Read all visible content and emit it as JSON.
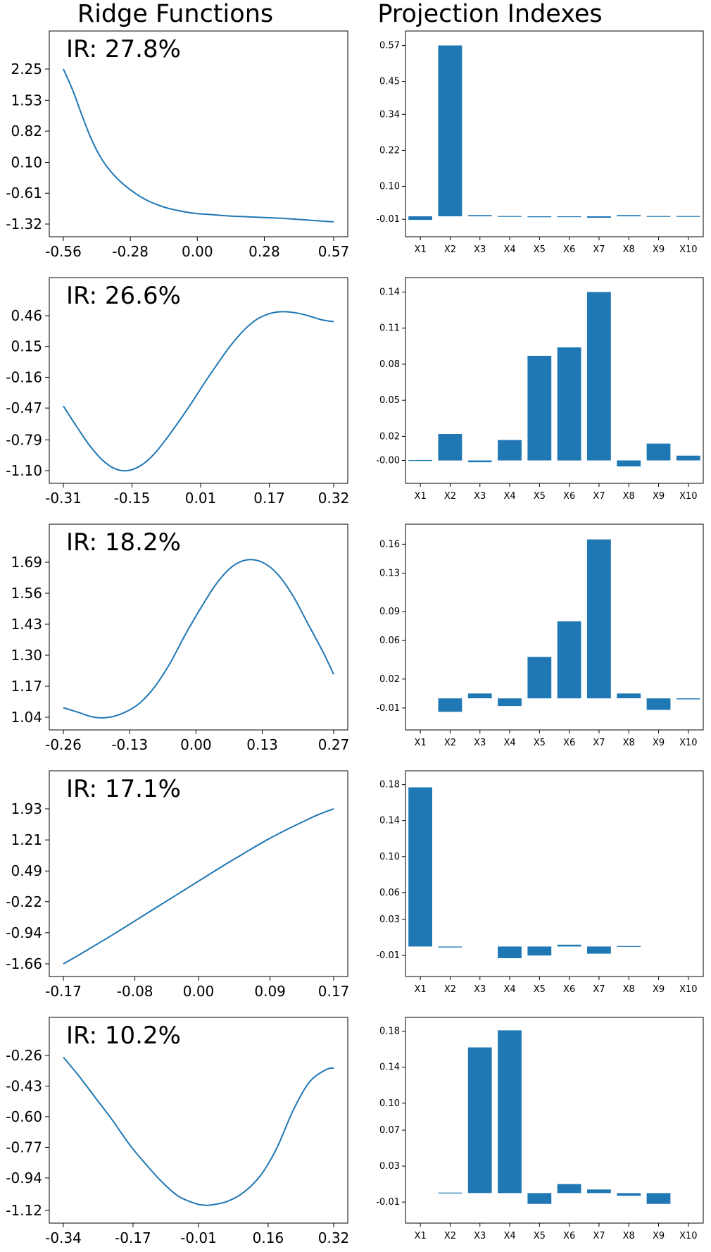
{
  "titles": {
    "ridge": "Ridge Functions",
    "projection": "Projection Indexes"
  },
  "colors": {
    "series": "#1f77b4"
  },
  "chart_data": [
    {
      "type": "line",
      "panel": "ridge",
      "annotation": "IR: 27.8%",
      "xlim": [
        -0.56,
        0.57
      ],
      "ylim": [
        -1.32,
        2.25
      ],
      "xticks": [
        "-0.56",
        "-0.28",
        "0.00",
        "0.28",
        "0.57"
      ],
      "yticks": [
        "2.25",
        "1.53",
        "0.82",
        "0.10",
        "-0.61",
        "-1.32"
      ],
      "x": [
        -0.56,
        -0.52,
        -0.48,
        -0.44,
        -0.4,
        -0.36,
        -0.32,
        -0.28,
        -0.24,
        -0.2,
        -0.16,
        -0.12,
        -0.08,
        -0.04,
        0.0,
        0.05,
        0.1,
        0.15,
        0.2,
        0.28,
        0.36,
        0.44,
        0.52,
        0.57
      ],
      "y": [
        2.25,
        1.75,
        1.15,
        0.6,
        0.18,
        -0.12,
        -0.35,
        -0.53,
        -0.68,
        -0.8,
        -0.89,
        -0.96,
        -1.01,
        -1.05,
        -1.08,
        -1.1,
        -1.12,
        -1.14,
        -1.15,
        -1.17,
        -1.19,
        -1.22,
        -1.25,
        -1.27
      ]
    },
    {
      "type": "bar",
      "panel": "projection",
      "categories": [
        "X1",
        "X2",
        "X3",
        "X4",
        "X5",
        "X6",
        "X7",
        "X8",
        "X9",
        "X10"
      ],
      "values": [
        -0.012,
        0.57,
        0.004,
        0.001,
        -0.003,
        -0.001,
        -0.005,
        0.004,
        0.001,
        0.001
      ],
      "ylim": [
        -0.04,
        0.59
      ],
      "yticks": [
        0.57,
        0.45,
        0.34,
        0.22,
        0.1,
        -0.01
      ],
      "ytick_labels": [
        "0.57",
        "0.45",
        "0.34",
        "0.22",
        "0.10",
        "-0.01"
      ]
    },
    {
      "type": "line",
      "panel": "ridge",
      "annotation": "IR: 26.6%",
      "xlim": [
        -0.31,
        0.32
      ],
      "ylim": [
        -1.1,
        0.46
      ],
      "xticks": [
        "-0.31",
        "-0.15",
        "0.01",
        "0.17",
        "0.32"
      ],
      "yticks": [
        "0.46",
        "0.15",
        "-0.16",
        "-0.47",
        "-0.79",
        "-1.10"
      ],
      "x": [
        -0.31,
        -0.28,
        -0.25,
        -0.22,
        -0.19,
        -0.16,
        -0.13,
        -0.1,
        -0.07,
        -0.04,
        -0.01,
        0.02,
        0.05,
        0.08,
        0.11,
        0.14,
        0.17,
        0.2,
        0.23,
        0.26,
        0.29,
        0.32
      ],
      "y": [
        -0.45,
        -0.65,
        -0.84,
        -0.99,
        -1.08,
        -1.1,
        -1.05,
        -0.94,
        -0.78,
        -0.6,
        -0.41,
        -0.21,
        -0.02,
        0.16,
        0.31,
        0.42,
        0.48,
        0.5,
        0.49,
        0.46,
        0.42,
        0.4
      ]
    },
    {
      "type": "bar",
      "panel": "projection",
      "categories": [
        "X1",
        "X2",
        "X3",
        "X4",
        "X5",
        "X6",
        "X7",
        "X8",
        "X9",
        "X10"
      ],
      "values": [
        0.0003,
        0.022,
        -0.0015,
        0.017,
        0.087,
        0.094,
        0.14,
        -0.005,
        0.014,
        0.004
      ],
      "ylim": [
        -0.012,
        0.145
      ],
      "yticks": [
        0.14,
        0.11,
        0.08,
        0.05,
        0.02,
        0.0
      ],
      "ytick_labels": [
        "0.14",
        "0.11",
        "0.08",
        "0.05",
        "0.02",
        "-0.00"
      ]
    },
    {
      "type": "line",
      "panel": "ridge",
      "annotation": "IR: 18.2%",
      "xlim": [
        -0.26,
        0.27
      ],
      "ylim": [
        1.04,
        1.69
      ],
      "xticks": [
        "-0.26",
        "-0.13",
        "0.00",
        "0.13",
        "0.27"
      ],
      "yticks": [
        "1.69",
        "1.56",
        "1.43",
        "1.30",
        "1.17",
        "1.04"
      ],
      "x": [
        -0.26,
        -0.23,
        -0.2,
        -0.17,
        -0.14,
        -0.11,
        -0.08,
        -0.05,
        -0.02,
        0.01,
        0.04,
        0.07,
        0.1,
        0.13,
        0.16,
        0.19,
        0.22,
        0.25,
        0.27
      ],
      "y": [
        1.08,
        1.06,
        1.04,
        1.04,
        1.06,
        1.1,
        1.17,
        1.27,
        1.39,
        1.5,
        1.6,
        1.67,
        1.7,
        1.69,
        1.64,
        1.55,
        1.43,
        1.31,
        1.22
      ]
    },
    {
      "type": "bar",
      "panel": "projection",
      "categories": [
        "X1",
        "X2",
        "X3",
        "X4",
        "X5",
        "X6",
        "X7",
        "X8",
        "X9",
        "X10"
      ],
      "values": [
        0,
        -0.014,
        0.005,
        -0.008,
        0.043,
        0.08,
        0.165,
        0.005,
        -0.012,
        -0.001
      ],
      "ylim": [
        -0.024,
        0.172
      ],
      "yticks": [
        0.16,
        0.13,
        0.09,
        0.06,
        0.02,
        -0.01
      ],
      "ytick_labels": [
        "0.16",
        "0.13",
        "0.09",
        "0.06",
        "0.02",
        "-0.01"
      ]
    },
    {
      "type": "line",
      "panel": "ridge",
      "annotation": "IR: 17.1%",
      "xlim": [
        -0.17,
        0.17
      ],
      "ylim": [
        -1.66,
        1.93
      ],
      "xticks": [
        "-0.17",
        "-0.08",
        "0.00",
        "0.09",
        "0.17"
      ],
      "yticks": [
        "1.93",
        "1.21",
        "0.49",
        "-0.22",
        "-0.94",
        "-1.66"
      ],
      "x": [
        -0.17,
        -0.15,
        -0.13,
        -0.11,
        -0.09,
        -0.07,
        -0.05,
        -0.03,
        -0.01,
        0.01,
        0.03,
        0.05,
        0.07,
        0.09,
        0.11,
        0.13,
        0.15,
        0.17
      ],
      "y": [
        -1.66,
        -1.45,
        -1.23,
        -1.01,
        -0.78,
        -0.55,
        -0.32,
        -0.09,
        0.14,
        0.37,
        0.6,
        0.82,
        1.04,
        1.25,
        1.44,
        1.62,
        1.79,
        1.93
      ]
    },
    {
      "type": "bar",
      "panel": "projection",
      "categories": [
        "X1",
        "X2",
        "X3",
        "X4",
        "X5",
        "X6",
        "X7",
        "X8",
        "X9",
        "X10"
      ],
      "values": [
        0.177,
        -0.001,
        0,
        -0.013,
        -0.01,
        0.002,
        -0.008,
        0.0005,
        0,
        0
      ],
      "ylim": [
        -0.024,
        0.186
      ],
      "yticks": [
        0.18,
        0.14,
        0.1,
        0.06,
        0.03,
        -0.01
      ],
      "ytick_labels": [
        "0.18",
        "0.14",
        "0.10",
        "0.06",
        "0.03",
        "-0.01"
      ]
    },
    {
      "type": "line",
      "panel": "ridge",
      "annotation": "IR: 10.2%",
      "xlim": [
        -0.34,
        0.32
      ],
      "ylim": [
        -1.12,
        -0.26
      ],
      "xticks": [
        "-0.34",
        "-0.17",
        "-0.01",
        "0.16",
        "0.32"
      ],
      "yticks": [
        "-0.26",
        "-0.43",
        "-0.60",
        "-0.77",
        "-0.94",
        "-1.12"
      ],
      "x": [
        -0.34,
        -0.3,
        -0.26,
        -0.22,
        -0.18,
        -0.14,
        -0.1,
        -0.06,
        -0.02,
        0.0,
        0.02,
        0.06,
        0.1,
        0.14,
        0.18,
        0.22,
        0.26,
        0.3,
        0.32
      ],
      "y": [
        -0.27,
        -0.38,
        -0.5,
        -0.62,
        -0.75,
        -0.86,
        -0.96,
        -1.04,
        -1.08,
        -1.09,
        -1.09,
        -1.07,
        -1.02,
        -0.93,
        -0.78,
        -0.57,
        -0.41,
        -0.34,
        -0.33
      ]
    },
    {
      "type": "bar",
      "panel": "projection",
      "categories": [
        "X1",
        "X2",
        "X3",
        "X4",
        "X5",
        "X6",
        "X7",
        "X8",
        "X9",
        "X10"
      ],
      "values": [
        0,
        0.0005,
        0.162,
        0.181,
        -0.012,
        0.01,
        0.004,
        -0.003,
        -0.012,
        0
      ],
      "ylim": [
        -0.024,
        0.186
      ],
      "yticks": [
        0.18,
        0.14,
        0.1,
        0.07,
        0.03,
        -0.01
      ],
      "ytick_labels": [
        "0.18",
        "0.14",
        "0.10",
        "0.07",
        "0.03",
        "-0.01"
      ]
    }
  ]
}
